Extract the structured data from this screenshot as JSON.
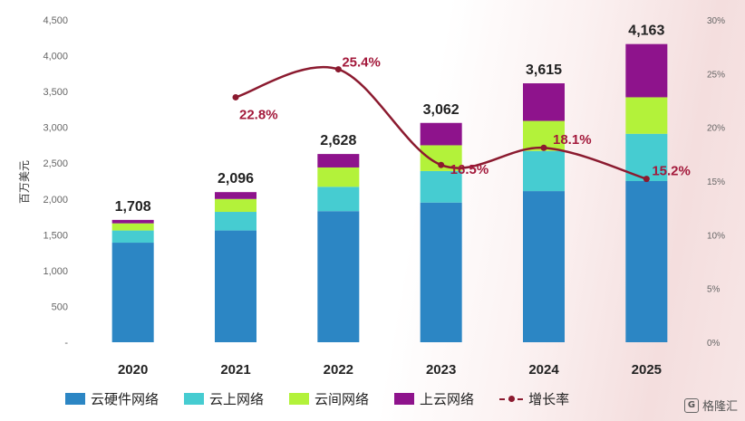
{
  "chart_data": {
    "type": "bar",
    "stacked": true,
    "categories": [
      "2020",
      "2021",
      "2022",
      "2023",
      "2024",
      "2025"
    ],
    "series": [
      {
        "name": "云硬件网络",
        "color": "#2c86c4",
        "values": [
          1390,
          1560,
          1830,
          1950,
          2110,
          2250
        ]
      },
      {
        "name": "云上网络",
        "color": "#46ccd1",
        "values": [
          170,
          260,
          340,
          440,
          560,
          660
        ]
      },
      {
        "name": "云间网络",
        "color": "#b3f23a",
        "values": [
          100,
          180,
          270,
          360,
          420,
          510
        ]
      },
      {
        "name": "上云网络",
        "color": "#8e138c",
        "values": [
          48,
          96,
          188,
          312,
          525,
          743
        ]
      }
    ],
    "totals": [
      "1,708",
      "2,096",
      "2,628",
      "3,062",
      "3,615",
      "4,163"
    ],
    "line": {
      "name": "增长率",
      "color": "#8b1a2f",
      "axis": "right",
      "categories": [
        "2021",
        "2022",
        "2023",
        "2024",
        "2025"
      ],
      "values": [
        22.8,
        25.4,
        16.5,
        18.1,
        15.2
      ],
      "labels": [
        "22.8%",
        "25.4%",
        "16.5%",
        "18.1%",
        "15.2%"
      ]
    },
    "ylabel": "百万美元",
    "ylim": [
      0,
      4500
    ],
    "y_ticks": [
      "-",
      "500",
      "1,000",
      "1,500",
      "2,000",
      "2,500",
      "3,000",
      "3,500",
      "4,000",
      "4,500"
    ],
    "y2lim": [
      0,
      30
    ],
    "y2_ticks": [
      "0%",
      "5%",
      "10%",
      "15%",
      "20%",
      "25%",
      "30%"
    ],
    "grid": false,
    "legend_position": "bottom"
  },
  "watermark": {
    "logo": "G",
    "text": "格隆汇"
  }
}
